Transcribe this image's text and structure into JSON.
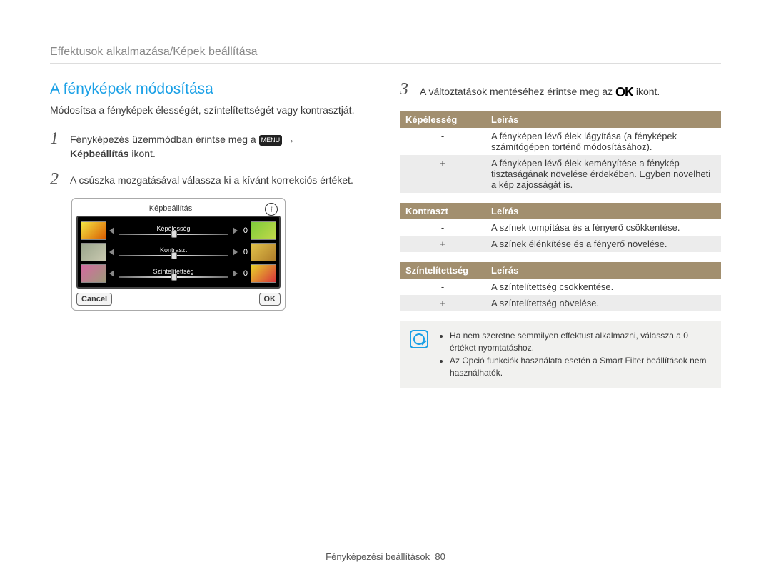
{
  "breadcrumb": "Effektusok alkalmazása/Képek beállítása",
  "section_title": "A fényképek módosítása",
  "intro": "Módosítsa a fényképek élességét, színtelítettségét vagy kontrasztját.",
  "steps": {
    "s1": {
      "num": "1",
      "before_icon": "Fényképezés üzemmódban érintse meg a ",
      "menu_label": "MENU",
      "arrow": " → ",
      "line2_bold": "Képbeállítás",
      "line2_rest": " ikont."
    },
    "s2": {
      "num": "2",
      "text": "A csúszka mozgatásával válassza ki a kívánt korrekciós értéket."
    },
    "s3": {
      "num": "3",
      "before": "A változtatások mentéséhez érintse meg az ",
      "ok_glyph": "OK",
      "after": " ikont."
    }
  },
  "device": {
    "title": "Képbeállítás",
    "info_glyph": "i",
    "rows": [
      {
        "label": "Képélesség",
        "value": "0",
        "left_colors": [
          "#f4e542",
          "#d95c00"
        ],
        "right_colors": [
          "#7ecb3a",
          "#c2d94a"
        ]
      },
      {
        "label": "Kontraszt",
        "value": "0",
        "left_colors": [
          "#9aa58c",
          "#c9c9b0"
        ],
        "right_colors": [
          "#e2c24a",
          "#b07d2a"
        ]
      },
      {
        "label": "Színtelítettség",
        "value": "0",
        "left_colors": [
          "#d46aa0",
          "#9e9a7a"
        ],
        "right_colors": [
          "#e8d22a",
          "#d8343a"
        ]
      }
    ],
    "cancel_label": "Cancel",
    "ok_label": "OK"
  },
  "tables": [
    {
      "head1": "Képélesség",
      "head2": "Leírás",
      "rows": [
        {
          "sign": "-",
          "desc": "A fényképen lévő élek lágyítása (a fényképek számítógépen történő módosításához)."
        },
        {
          "sign": "+",
          "desc": "A fényképen lévő élek keményítése a fénykép tisztaságának növelése érdekében. Egyben növelheti a kép zajosságát is."
        }
      ]
    },
    {
      "head1": "Kontraszt",
      "head2": "Leírás",
      "rows": [
        {
          "sign": "-",
          "desc": "A színek tompítása és a fényerő csökkentése."
        },
        {
          "sign": "+",
          "desc": "A színek élénkítése és a fényerő növelése."
        }
      ]
    },
    {
      "head1": "Színtelítettség",
      "head2": "Leírás",
      "rows": [
        {
          "sign": "-",
          "desc": "A színtelítettség csökkentése."
        },
        {
          "sign": "+",
          "desc": "A színtelítettség növelése."
        }
      ]
    }
  ],
  "note": {
    "items": [
      "Ha nem szeretne semmilyen effektust alkalmazni, válassza a 0 értéket nyomtatáshoz.",
      "Az Opció funkciók használata esetén a Smart Filter beállítások nem használhatók."
    ]
  },
  "footer": {
    "label": "Fényképezési beállítások",
    "page": "80"
  },
  "colors": {
    "accent": "#1aa0e6",
    "table_header": "#a28f6f",
    "stripe": "#ececec",
    "note_bg": "#f1f1ef"
  }
}
